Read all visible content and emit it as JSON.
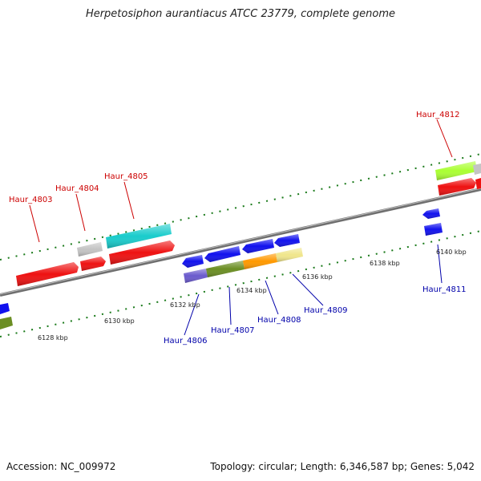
{
  "header": {
    "title": "Herpetosiphon aurantiacus ATCC 23779, complete genome"
  },
  "footer": {
    "accession": "Accession: NC_009972",
    "summary": "Topology: circular; Length: 6,346,587 bp; Genes: 5,042"
  },
  "colors": {
    "forward_label": "#cc0000",
    "reverse_label": "#0000aa",
    "backbone": "#7f7f7f",
    "tick": "#1a7a1a"
  },
  "kbp_labels": [
    "6128 kbp",
    "6130 kbp",
    "6132 kbp",
    "6134 kbp",
    "6136 kbp",
    "6138 kbp",
    "6140 kbp"
  ],
  "gene_labels": {
    "forward": [
      "Haur_4803",
      "Haur_4804",
      "Haur_4805",
      "Haur_4812"
    ],
    "reverse": [
      "Haur_4806",
      "Haur_4807",
      "Haur_4808",
      "Haur_4809",
      "Haur_4811"
    ]
  }
}
